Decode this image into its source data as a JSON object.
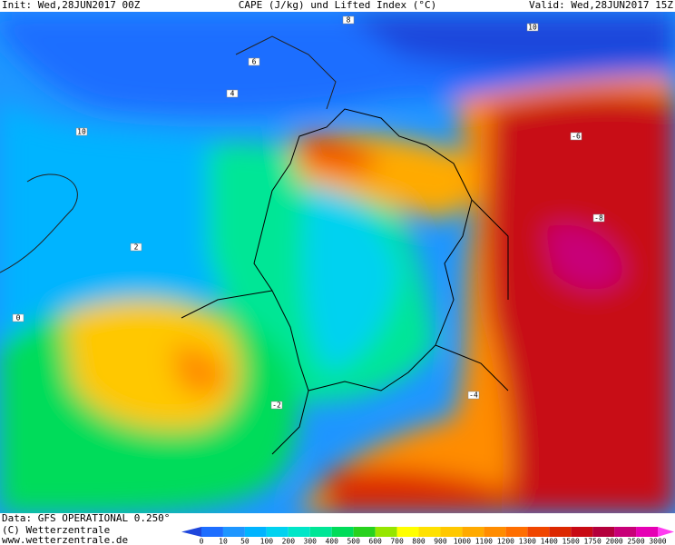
{
  "header": {
    "init": "Init: Wed,28JUN2017 00Z",
    "title": "CAPE (J/kg) und Lifted Index (°C)",
    "valid": "Valid: Wed,28JUN2017 15Z"
  },
  "footer": {
    "data": "Data: GFS OPERATIONAL 0.250°",
    "copyright": "(C) Wetterzentrale",
    "url": "www.wetterzentrale.de"
  },
  "legend": {
    "labels": [
      "0",
      "10",
      "50",
      "100",
      "200",
      "300",
      "400",
      "500",
      "600",
      "700",
      "800",
      "900",
      "1000",
      "1100",
      "1200",
      "1300",
      "1400",
      "1500",
      "1750",
      "2000",
      "2500",
      "3000"
    ],
    "colors": [
      "#1e46dc",
      "#1e6eff",
      "#1e96ff",
      "#00b4ff",
      "#00d2f0",
      "#00e6c8",
      "#00e696",
      "#00dc5a",
      "#28d21e",
      "#96e600",
      "#ffff00",
      "#ffe100",
      "#ffc800",
      "#ffaa00",
      "#ff8c00",
      "#ff6e00",
      "#f04600",
      "#dc2800",
      "#c80a14",
      "#b4003c",
      "#c80078",
      "#e600b4",
      "#ff3cf0"
    ]
  },
  "map": {
    "contour_labels": [
      "10",
      "8",
      "10",
      "6",
      "4",
      "2",
      "0",
      "-2",
      "-4",
      "-6",
      "-8"
    ]
  }
}
